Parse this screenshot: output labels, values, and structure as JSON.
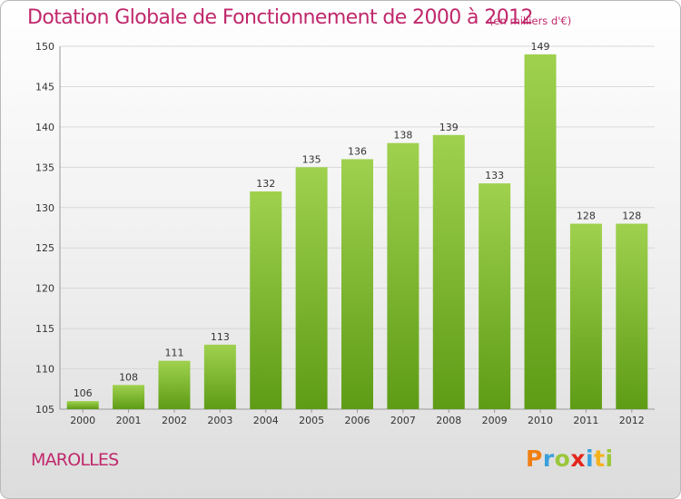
{
  "chart_data": {
    "type": "bar",
    "title": "Dotation Globale de Fonctionnement de 2000 à 2012",
    "subtitle": "(en milliers d'€)",
    "categories": [
      "2000",
      "2001",
      "2002",
      "2003",
      "2004",
      "2005",
      "2006",
      "2007",
      "2008",
      "2009",
      "2010",
      "2011",
      "2012"
    ],
    "values": [
      106,
      108,
      111,
      113,
      132,
      135,
      136,
      138,
      139,
      133,
      149,
      128,
      128
    ],
    "ylim": [
      105,
      150
    ],
    "yticks": [
      105,
      110,
      115,
      120,
      125,
      130,
      135,
      140,
      145,
      150
    ],
    "xlabel": "",
    "ylabel": "",
    "grid": true,
    "bar_color": "#8cc63f",
    "title_color": "#c0286c"
  },
  "commune": "MAROLLES",
  "logo": {
    "text": "Proxiti",
    "colors": {
      "p": "#f07f12",
      "r": "#3aa0dc",
      "o": "#9bc73a",
      "x": "#e2261d",
      "i1": "#3aa0dc",
      "t": "#f4b21c",
      "i2": "#9bc73a"
    }
  }
}
